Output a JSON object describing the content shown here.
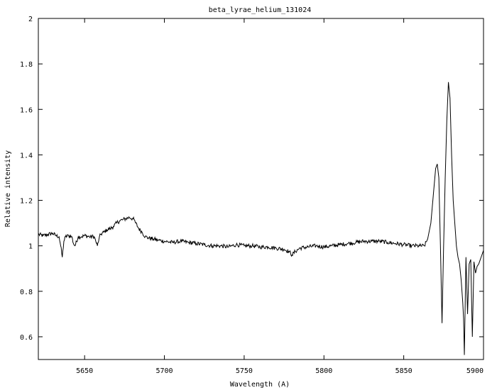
{
  "chart_data": {
    "type": "line",
    "title": "beta_lyrae_helium_131024",
    "xlabel": "Wavelength (A)",
    "ylabel": "Relative intensity",
    "xlim": [
      5621,
      5900
    ],
    "ylim": [
      0.5,
      2.0
    ],
    "grid": false,
    "legend": "none",
    "line_color": "#000000",
    "x_ticks": [
      {
        "value": 5650,
        "label": "5650"
      },
      {
        "value": 5700,
        "label": "5700"
      },
      {
        "value": 5750,
        "label": "5750"
      },
      {
        "value": 5800,
        "label": "5800"
      },
      {
        "value": 5850,
        "label": "5850"
      },
      {
        "value": 5900,
        "label": "5900"
      }
    ],
    "y_ticks": [
      {
        "value": 0.6,
        "label": "0.6"
      },
      {
        "value": 0.8,
        "label": "0.8"
      },
      {
        "value": 1.0,
        "label": "1"
      },
      {
        "value": 1.2,
        "label": "1.2"
      },
      {
        "value": 1.4,
        "label": "1.4"
      },
      {
        "value": 1.6,
        "label": "1.6"
      },
      {
        "value": 1.8,
        "label": "1.8"
      },
      {
        "value": 2.0,
        "label": "2"
      }
    ],
    "series": [
      {
        "x": [
          5621,
          5624,
          5627,
          5630,
          5632,
          5634,
          5635,
          5636,
          5637,
          5638,
          5640,
          5642,
          5643,
          5644,
          5646,
          5648,
          5650,
          5653,
          5656,
          5657,
          5658,
          5659,
          5660,
          5662,
          5664,
          5666,
          5668,
          5670,
          5672,
          5674,
          5676,
          5678,
          5680,
          5681,
          5682,
          5684,
          5686,
          5688,
          5690,
          5693,
          5696,
          5700,
          5705,
          5710,
          5715,
          5720,
          5725,
          5730,
          5735,
          5740,
          5745,
          5750,
          5755,
          5760,
          5765,
          5770,
          5775,
          5778,
          5780,
          5782,
          5785,
          5790,
          5795,
          5800,
          5805,
          5810,
          5815,
          5820,
          5825,
          5830,
          5835,
          5840,
          5845,
          5850,
          5855,
          5860,
          5863,
          5865,
          5867,
          5868,
          5869,
          5870,
          5871,
          5872,
          5873,
          5874,
          5875,
          5876,
          5877,
          5878,
          5879,
          5880,
          5881,
          5882,
          5883,
          5884,
          5885,
          5886,
          5887,
          5887.5,
          5888,
          5889,
          5890,
          5891,
          5892,
          5893,
          5894,
          5895,
          5896,
          5897,
          5898,
          5899,
          5900
        ],
        "y": [
          1.05,
          1.045,
          1.05,
          1.055,
          1.045,
          1.04,
          1.0,
          0.95,
          1.02,
          1.04,
          1.045,
          1.04,
          1.01,
          1.0,
          1.04,
          1.04,
          1.045,
          1.04,
          1.04,
          1.02,
          1.0,
          1.03,
          1.05,
          1.06,
          1.07,
          1.075,
          1.085,
          1.1,
          1.11,
          1.115,
          1.12,
          1.125,
          1.12,
          1.115,
          1.1,
          1.075,
          1.06,
          1.04,
          1.035,
          1.03,
          1.025,
          1.02,
          1.015,
          1.02,
          1.015,
          1.01,
          1.005,
          1.0,
          1.0,
          0.995,
          1.005,
          1.0,
          1.0,
          0.995,
          0.995,
          0.99,
          0.985,
          0.975,
          0.96,
          0.975,
          0.99,
          0.995,
          1.0,
          0.995,
          1.0,
          1.005,
          1.01,
          1.015,
          1.02,
          1.02,
          1.02,
          1.015,
          1.01,
          1.005,
          1.0,
          1.0,
          1.0,
          1.03,
          1.1,
          1.18,
          1.26,
          1.34,
          1.36,
          1.3,
          1.0,
          0.66,
          1.0,
          1.3,
          1.55,
          1.72,
          1.65,
          1.4,
          1.2,
          1.1,
          1.0,
          0.95,
          0.92,
          0.85,
          0.75,
          0.68,
          0.52,
          0.95,
          0.7,
          0.92,
          0.94,
          0.6,
          0.93,
          0.88,
          0.91,
          0.92,
          0.94,
          0.96,
          0.98
        ]
      }
    ]
  }
}
